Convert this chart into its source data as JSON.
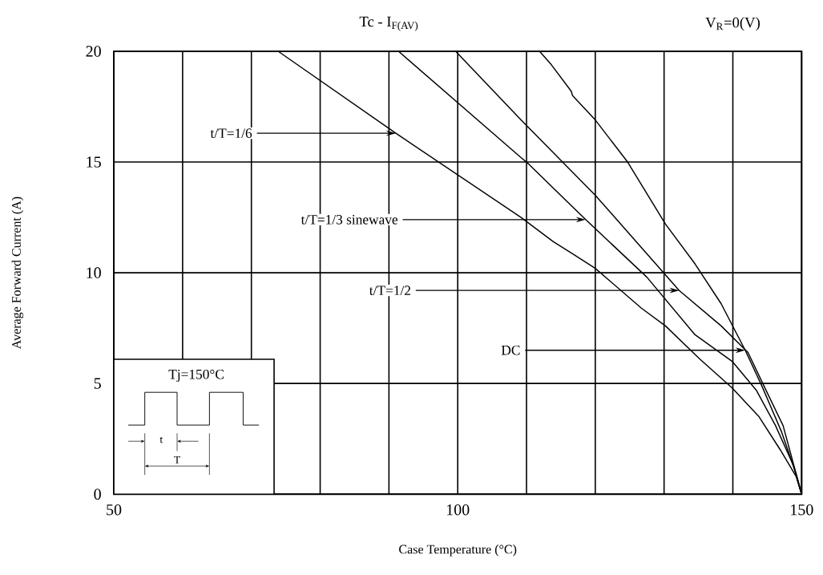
{
  "chart_data": {
    "type": "line",
    "title": "Tc - I$_{F(AV)}$",
    "subtitle": "V$_{R}$=0(V)",
    "xlabel": "Case Temperature (°C)",
    "ylabel": "Average Forward Current (A)",
    "xlim": [
      50,
      150
    ],
    "ylim": [
      0,
      20
    ],
    "xticks": [
      50,
      {
        "value": 60,
        "label": null
      },
      {
        "value": 70,
        "label": null
      },
      {
        "value": 80,
        "label": null
      },
      {
        "value": 90,
        "label": null
      },
      100,
      {
        "value": 110,
        "label": null
      },
      {
        "value": 120,
        "label": null
      },
      {
        "value": 130,
        "label": null
      },
      {
        "value": 140,
        "label": null
      },
      150
    ],
    "yticks": [
      0,
      5,
      10,
      15,
      20
    ],
    "grid": true,
    "line_style": "solid",
    "series": [
      {
        "color": "#000000",
        "x": [
          73.9,
          91.0,
          109.2,
          113.9,
          116.5,
          120.0,
          126.7,
          130.2,
          135.2,
          139.9,
          143.8,
          146.9,
          149.2,
          150
        ],
        "values": [
          20,
          16.3,
          12.5,
          11.4,
          10.9,
          10.2,
          8.4,
          7.6,
          6.1,
          4.8,
          3.5,
          2.0,
          0.8,
          0
        ]
      },
      {
        "color": "#000000",
        "x": [
          91.4,
          109.2,
          110.0,
          118.6,
          127.5,
          134.5,
          139.9,
          143.4,
          146.2,
          148.8,
          150
        ],
        "values": [
          20,
          15.2,
          15.0,
          12.4,
          9.8,
          7.2,
          6.0,
          4.7,
          3.1,
          1.3,
          0
        ]
      },
      {
        "color": "#000000",
        "x": [
          99.7,
          109.2,
          120.0,
          132.2,
          138.3,
          142.2,
          144.5,
          147.3,
          150
        ],
        "values": [
          20,
          16.9,
          13.5,
          9.2,
          7.6,
          6.4,
          4.9,
          3.1,
          0
        ]
      },
      {
        "color": "#000000",
        "x": [
          111.9,
          113.6,
          116.5,
          116.7,
          120.0,
          124.7,
          130.2,
          134.5,
          138.3,
          141.8,
          144.2,
          147.1,
          149.2,
          150
        ],
        "values": [
          20,
          19.4,
          18.2,
          18.0,
          16.9,
          15.0,
          12.2,
          10.4,
          8.6,
          6.5,
          4.9,
          2.8,
          0.9,
          0
        ]
      }
    ],
    "annotations": [
      {
        "text": "t/T=1/6",
        "x": 91.0,
        "y": 16.3
      },
      {
        "text": "t/T=1/3 sinewave",
        "x": 118.6,
        "y": 12.4
      },
      {
        "text": "t/T=1/2",
        "x": 132.2,
        "y": 9.2
      },
      {
        "text": "DC",
        "x": 141.8,
        "y": 6.5
      },
      "Tj=150°C",
      "t",
      "T"
    ]
  }
}
